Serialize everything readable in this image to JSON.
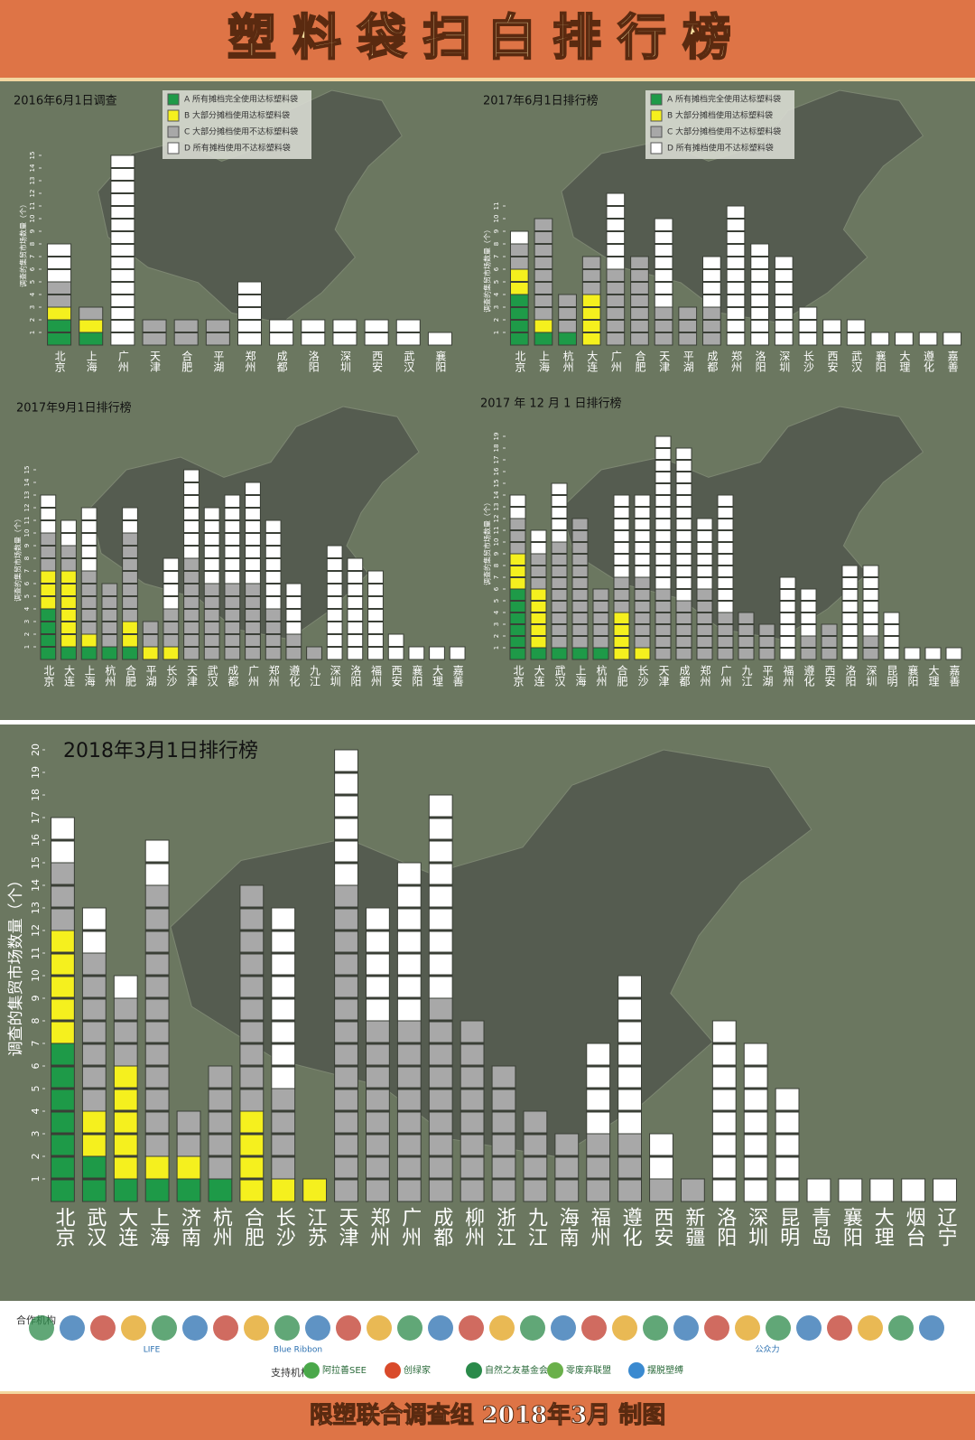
{
  "header": {
    "title": "塑料袋扫白排行榜"
  },
  "chart_data": [
    {
      "type": "bar",
      "stacked": true,
      "title": "2016年6月1日调查",
      "y_label": "调查的集贸市场数量（个）",
      "categories": [
        "北京",
        "上海",
        "广州",
        "天津",
        "合肥",
        "平湖",
        "郑州",
        "成都",
        "洛阳",
        "深圳",
        "西安",
        "武汉",
        "襄阳"
      ],
      "series": [
        {
          "name": "A 所有摊档完全使用达标塑料袋",
          "color": "#1e9a48",
          "values": [
            2,
            1,
            0,
            0,
            0,
            0,
            0,
            0,
            0,
            0,
            0,
            0,
            0
          ]
        },
        {
          "name": "B 大部分摊档使用达标塑料袋",
          "color": "#f5f01e",
          "values": [
            1,
            1,
            0,
            0,
            0,
            0,
            0,
            0,
            0,
            0,
            0,
            0,
            0
          ]
        },
        {
          "name": "C 大部分摊档使用不达标塑料袋",
          "color": "#a8a8a8",
          "values": [
            2,
            1,
            0,
            2,
            2,
            2,
            0,
            0,
            0,
            0,
            0,
            0,
            0
          ]
        },
        {
          "name": "D 所有摊档使用不达标塑料袋",
          "color": "#ffffff",
          "values": [
            3,
            0,
            15,
            0,
            0,
            0,
            5,
            2,
            2,
            2,
            2,
            2,
            1
          ]
        }
      ],
      "ylim": [
        0,
        16
      ],
      "yticks": [
        1,
        2,
        3,
        4,
        5,
        6,
        7,
        8,
        9,
        10,
        11,
        12,
        13,
        14,
        15
      ],
      "legend": "top"
    },
    {
      "type": "bar",
      "stacked": true,
      "title": "2017年6月1日排行榜",
      "y_label": "调查的集贸市场数量（个）",
      "categories": [
        "北京",
        "上海",
        "杭州",
        "大连",
        "广州",
        "合肥",
        "天津",
        "平湖",
        "成都",
        "郑州",
        "洛阳",
        "深圳",
        "长沙",
        "西安",
        "武汉",
        "襄阳",
        "大理",
        "遵化",
        "嘉善"
      ],
      "series": [
        {
          "name": "A 所有摊档完全使用达标塑料袋",
          "color": "#1e9a48",
          "values": [
            4,
            1,
            1,
            0,
            0,
            0,
            0,
            0,
            0,
            0,
            0,
            0,
            0,
            0,
            0,
            0,
            0,
            0,
            0
          ]
        },
        {
          "name": "B 大部分摊档使用达标塑料袋",
          "color": "#f5f01e",
          "values": [
            2,
            1,
            0,
            4,
            0,
            0,
            0,
            0,
            0,
            0,
            0,
            0,
            0,
            0,
            0,
            0,
            0,
            0,
            0
          ]
        },
        {
          "name": "C 大部分摊档使用不达标塑料袋",
          "color": "#a8a8a8",
          "values": [
            2,
            8,
            3,
            3,
            6,
            7,
            3,
            3,
            3,
            0,
            0,
            0,
            0,
            0,
            0,
            0,
            0,
            0,
            0
          ]
        },
        {
          "name": "D 所有摊档使用不达标塑料袋",
          "color": "#ffffff",
          "values": [
            1,
            0,
            0,
            0,
            6,
            0,
            7,
            0,
            4,
            11,
            8,
            7,
            3,
            2,
            2,
            1,
            1,
            1,
            1
          ]
        }
      ],
      "ylim": [
        0,
        12
      ],
      "yticks": [
        1,
        2,
        3,
        4,
        5,
        6,
        7,
        8,
        9,
        10,
        11
      ],
      "legend": "top"
    },
    {
      "type": "bar",
      "stacked": true,
      "title": "2017年9月1日排行榜",
      "y_label": "调查的集贸市场数量（个）",
      "categories": [
        "北京",
        "大连",
        "上海",
        "杭州",
        "合肥",
        "平湖",
        "长沙",
        "天津",
        "武汉",
        "成都",
        "广州",
        "郑州",
        "遵化",
        "九江",
        "深圳",
        "洛阳",
        "福州",
        "西安",
        "襄阳",
        "大理",
        "嘉善"
      ],
      "series": [
        {
          "color": "#1e9a48",
          "values": [
            4,
            1,
            1,
            1,
            1,
            0,
            0,
            0,
            0,
            0,
            0,
            0,
            0,
            0,
            0,
            0,
            0,
            0,
            0,
            0,
            0
          ]
        },
        {
          "color": "#f5f01e",
          "values": [
            3,
            6,
            1,
            0,
            2,
            1,
            1,
            0,
            0,
            0,
            0,
            0,
            0,
            0,
            0,
            0,
            0,
            0,
            0,
            0,
            0
          ]
        },
        {
          "color": "#a8a8a8",
          "values": [
            3,
            2,
            5,
            5,
            7,
            2,
            3,
            8,
            6,
            6,
            6,
            4,
            2,
            1,
            0,
            0,
            0,
            0,
            0,
            0,
            0
          ]
        },
        {
          "color": "#ffffff",
          "values": [
            3,
            2,
            5,
            0,
            2,
            0,
            4,
            7,
            6,
            7,
            8,
            7,
            4,
            0,
            9,
            8,
            7,
            2,
            1,
            1,
            1
          ]
        }
      ],
      "ylim": [
        0,
        16
      ],
      "yticks": [
        1,
        2,
        3,
        4,
        5,
        6,
        7,
        8,
        9,
        10,
        11,
        12,
        13,
        14,
        15
      ]
    },
    {
      "type": "bar",
      "stacked": true,
      "title": "2017 年 12 月 1 日排行榜",
      "y_label": "调查的集贸市场数量（个）",
      "categories": [
        "北京",
        "大连",
        "武汉",
        "上海",
        "杭州",
        "合肥",
        "长沙",
        "天津",
        "成都",
        "郑州",
        "广州",
        "九江",
        "平湖",
        "福州",
        "遵化",
        "西安",
        "洛阳",
        "深圳",
        "昆明",
        "襄阳",
        "大理",
        "嘉善"
      ],
      "series": [
        {
          "color": "#1e9a48",
          "values": [
            6,
            1,
            1,
            1,
            1,
            0,
            0,
            0,
            0,
            0,
            0,
            0,
            0,
            0,
            0,
            0,
            0,
            0,
            0,
            0,
            0,
            0
          ]
        },
        {
          "color": "#f5f01e",
          "values": [
            3,
            5,
            0,
            0,
            0,
            4,
            1,
            0,
            0,
            0,
            0,
            0,
            0,
            0,
            0,
            0,
            0,
            0,
            0,
            0,
            0,
            0
          ]
        },
        {
          "color": "#a8a8a8",
          "values": [
            3,
            3,
            9,
            11,
            5,
            3,
            6,
            6,
            5,
            6,
            4,
            4,
            3,
            0,
            2,
            3,
            0,
            2,
            0,
            0,
            0,
            0
          ]
        },
        {
          "color": "#ffffff",
          "values": [
            2,
            2,
            5,
            0,
            0,
            7,
            7,
            13,
            13,
            6,
            10,
            0,
            0,
            7,
            4,
            0,
            8,
            6,
            4,
            1,
            1,
            1
          ]
        }
      ],
      "ylim": [
        0,
        20
      ],
      "yticks": [
        1,
        2,
        3,
        4,
        5,
        6,
        7,
        8,
        9,
        10,
        11,
        12,
        13,
        14,
        15,
        16,
        17,
        18,
        19
      ]
    },
    {
      "type": "bar",
      "stacked": true,
      "title": "2018年3月1日排行榜",
      "y_label": "调查的集贸市场数量（个）",
      "categories": [
        "北京",
        "武汉",
        "大连",
        "上海",
        "济南",
        "杭州",
        "合肥",
        "长沙",
        "江苏",
        "天津",
        "郑州",
        "广州",
        "成都",
        "柳州",
        "浙江",
        "九江",
        "海南",
        "福州",
        "遵化",
        "西安",
        "新疆",
        "洛阳",
        "深圳",
        "昆明",
        "青岛",
        "襄阳",
        "大理",
        "烟台",
        "辽宁"
      ],
      "series": [
        {
          "color": "#1e9a48",
          "values": [
            7,
            2,
            1,
            1,
            1,
            1,
            0,
            0,
            0,
            0,
            0,
            0,
            0,
            0,
            0,
            0,
            0,
            0,
            0,
            0,
            0,
            0,
            0,
            0,
            0,
            0,
            0,
            0,
            0
          ]
        },
        {
          "color": "#f5f01e",
          "values": [
            5,
            2,
            5,
            1,
            1,
            0,
            4,
            1,
            1,
            0,
            0,
            0,
            0,
            0,
            0,
            0,
            0,
            0,
            0,
            0,
            0,
            0,
            0,
            0,
            0,
            0,
            0,
            0,
            0
          ]
        },
        {
          "color": "#a8a8a8",
          "values": [
            3,
            7,
            3,
            12,
            2,
            5,
            10,
            4,
            0,
            14,
            8,
            8,
            9,
            8,
            6,
            4,
            3,
            3,
            3,
            1,
            1,
            0,
            0,
            0,
            0,
            0,
            0,
            0,
            0
          ]
        },
        {
          "color": "#ffffff",
          "values": [
            2,
            2,
            1,
            2,
            0,
            0,
            0,
            8,
            0,
            6,
            5,
            7,
            9,
            0,
            0,
            0,
            0,
            4,
            7,
            2,
            0,
            8,
            7,
            5,
            1,
            1,
            1,
            1,
            1
          ]
        }
      ],
      "ylim": [
        0,
        21
      ],
      "yticks": [
        1,
        2,
        3,
        4,
        5,
        6,
        7,
        8,
        9,
        10,
        11,
        12,
        13,
        14,
        15,
        16,
        17,
        18,
        19,
        20
      ]
    }
  ],
  "footer": {
    "partners_label": "合作机构",
    "partners": [
      "LIFE",
      "Blue Ribbon",
      "公众力"
    ],
    "supporters_label": "支持机构",
    "supporters": [
      "阿拉善SEE",
      "创绿家",
      "自然之友基金会",
      "零废弃联盟",
      "摆脱塑缚"
    ],
    "credit": "限塑联合调查组 2018年3月 制图"
  }
}
